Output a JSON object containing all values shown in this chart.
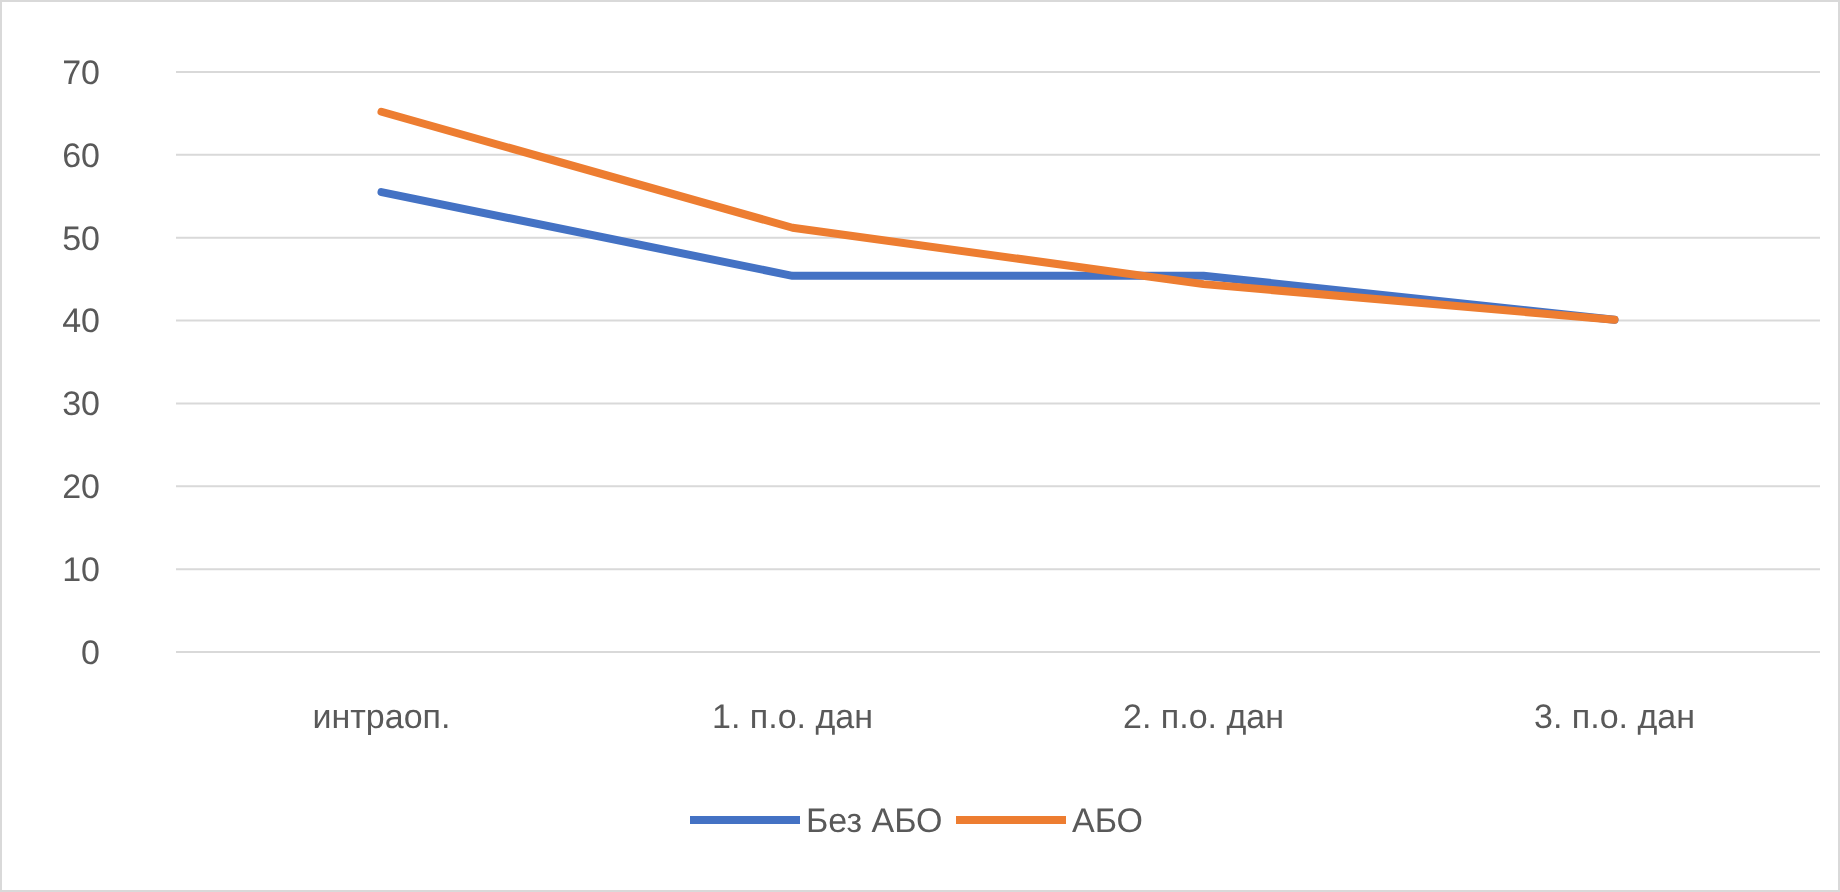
{
  "chart_data": {
    "type": "line",
    "categories": [
      "интраоп.",
      "1. п.о. дан",
      "2. п.о. дан",
      "3. п.о. дан"
    ],
    "series": [
      {
        "name": "Без АБО",
        "color": "#4472c4",
        "values": [
          55.5,
          45.4,
          45.4,
          40.1
        ]
      },
      {
        "name": "АБО",
        "color": "#ed7d31",
        "values": [
          65.2,
          51.2,
          44.4,
          40.1
        ]
      }
    ],
    "ylim": [
      0,
      70
    ],
    "yticks": [
      0,
      10,
      20,
      30,
      40,
      50,
      60,
      70
    ],
    "grid": "y",
    "legend": "bottom",
    "marker": "none",
    "line_style": "solid"
  }
}
